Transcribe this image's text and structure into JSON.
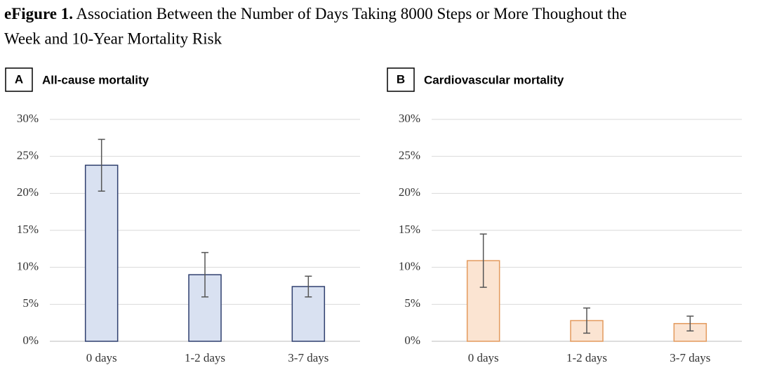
{
  "figure_label": "eFigure 1.",
  "figure_title": "Association Between the Number of Days Taking 8000 Steps or More Thoughout the Week and 10-Year Mortality Risk",
  "chart_data": [
    {
      "type": "bar",
      "panel_label": "A",
      "title": "All-cause mortality",
      "categories": [
        "0 days",
        "1-2 days",
        "3-7 days"
      ],
      "values": [
        23.8,
        9.0,
        7.4
      ],
      "errors": [
        3.5,
        3.0,
        1.4
      ],
      "color": "#d9e1f1",
      "edge_color": "#2f3f6e",
      "error_color": "#555555",
      "ylim": [
        0,
        30
      ],
      "yticks": [
        {
          "value": 0,
          "label": "0%"
        },
        {
          "value": 5,
          "label": "5%"
        },
        {
          "value": 10,
          "label": "10%"
        },
        {
          "value": 15,
          "label": "15%"
        },
        {
          "value": 20,
          "label": "20%"
        },
        {
          "value": 25,
          "label": "25%"
        },
        {
          "value": 30,
          "label": "30%"
        }
      ],
      "grid": true
    },
    {
      "type": "bar",
      "panel_label": "B",
      "title": "Cardiovascular mortality",
      "categories": [
        "0 days",
        "1-2 days",
        "3-7 days"
      ],
      "values": [
        10.9,
        2.8,
        2.4
      ],
      "errors": [
        3.6,
        1.7,
        1.0
      ],
      "color": "#fbe4d2",
      "edge_color": "#e39a5d",
      "error_color": "#555555",
      "ylim": [
        0,
        30
      ],
      "yticks": [
        {
          "value": 0,
          "label": "0%"
        },
        {
          "value": 5,
          "label": "5%"
        },
        {
          "value": 10,
          "label": "10%"
        },
        {
          "value": 15,
          "label": "15%"
        },
        {
          "value": 20,
          "label": "20%"
        },
        {
          "value": 25,
          "label": "25%"
        },
        {
          "value": 30,
          "label": "30%"
        }
      ],
      "grid": true
    }
  ]
}
